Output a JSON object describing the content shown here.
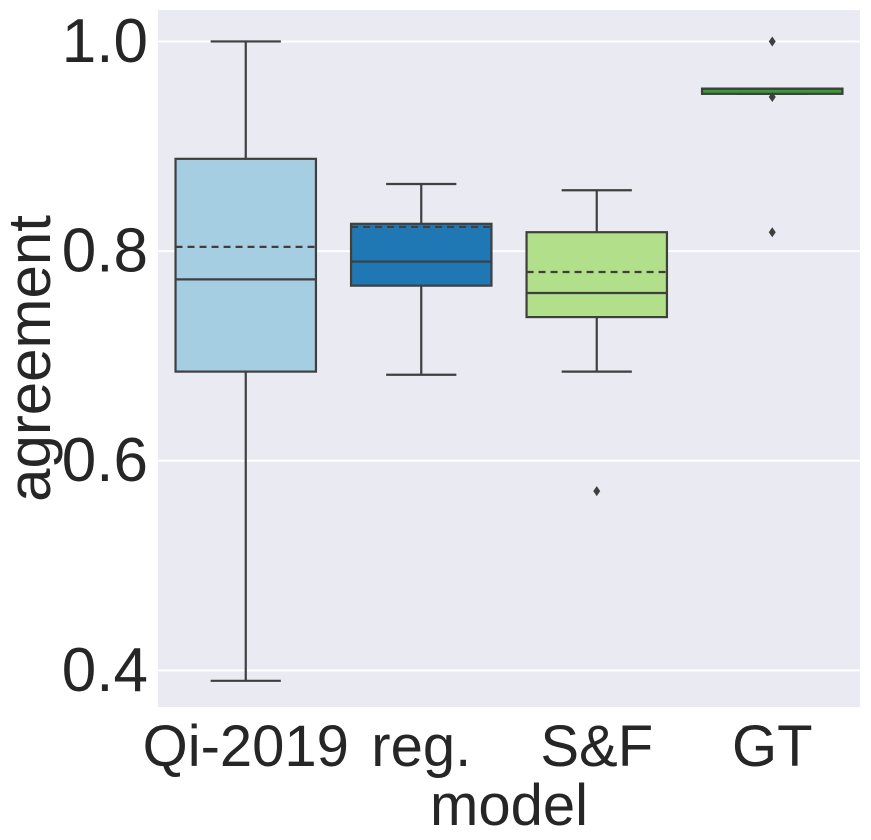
{
  "chart_data": {
    "type": "box",
    "title": "",
    "xlabel": "model",
    "ylabel": "agreement",
    "ylim": [
      0.365,
      1.03
    ],
    "yticks": [
      0.4,
      0.6,
      0.8,
      1.0
    ],
    "ytick_labels": [
      "0.4",
      "0.6",
      "0.8",
      "1.0"
    ],
    "grid": true,
    "mean_line": "dashed",
    "categories": [
      "Qi-2019",
      "reg.",
      "S&F",
      "GT"
    ],
    "series": [
      {
        "name": "Qi-2019",
        "color": "#a6cee3",
        "whisker_low": 0.39,
        "q1": 0.685,
        "median": 0.773,
        "mean": 0.804,
        "q3": 0.888,
        "whisker_high": 1.0,
        "outliers": []
      },
      {
        "name": "reg.",
        "color": "#1f78b4",
        "whisker_low": 0.682,
        "q1": 0.767,
        "median": 0.79,
        "mean": 0.823,
        "q3": 0.826,
        "whisker_high": 0.864,
        "outliers": []
      },
      {
        "name": "S&F",
        "color": "#b2df8a",
        "whisker_low": 0.685,
        "q1": 0.737,
        "median": 0.76,
        "mean": 0.78,
        "q3": 0.818,
        "whisker_high": 0.858,
        "outliers": [
          0.571
        ]
      },
      {
        "name": "GT",
        "color": "#33a02c",
        "whisker_low": 0.95,
        "q1": 0.95,
        "median": 0.955,
        "mean": 0.955,
        "q3": 0.955,
        "whisker_high": 0.955,
        "outliers": [
          1.0,
          0.947,
          0.818
        ]
      }
    ],
    "colors": {
      "background": "#eaeaf2",
      "grid": "#ffffff",
      "line": "#3f3f3f",
      "text": "#262626"
    }
  }
}
